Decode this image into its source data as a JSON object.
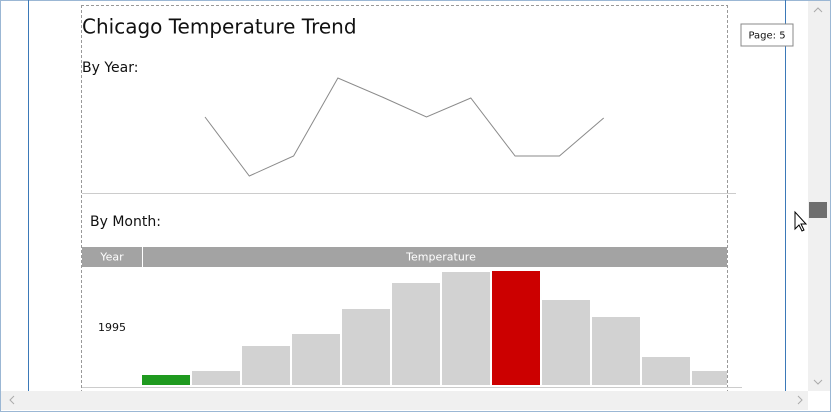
{
  "report_title": "Chicago Temperature Trend",
  "tooltip": "Page: 5",
  "chart_data": [
    {
      "type": "line",
      "title": "By Year:",
      "categories": [
        null,
        null,
        null,
        null,
        null,
        null,
        null,
        null,
        null,
        null
      ],
      "values": [
        73,
        14,
        34,
        112,
        93,
        73,
        92,
        34,
        34,
        72
      ],
      "color": "#8a8a8a",
      "ylim": [
        0,
        120
      ]
    },
    {
      "type": "bar",
      "title": "By Month:",
      "columns": [
        "Year",
        "Temperature"
      ],
      "row_label": "1995",
      "categories": [
        null,
        null,
        null,
        null,
        null,
        null,
        null,
        null,
        null,
        null,
        null,
        null
      ],
      "values": [
        10,
        14,
        39,
        51,
        76,
        102,
        113,
        114,
        85,
        68,
        28,
        14
      ],
      "colors": [
        "#1f9a1f",
        "#d2d2d2",
        "#d2d2d2",
        "#d2d2d2",
        "#d2d2d2",
        "#d2d2d2",
        "#d2d2d2",
        "#cc0000",
        "#d2d2d2",
        "#d2d2d2",
        "#d2d2d2",
        "#d2d2d2"
      ],
      "ylim": [
        0,
        120
      ]
    }
  ]
}
